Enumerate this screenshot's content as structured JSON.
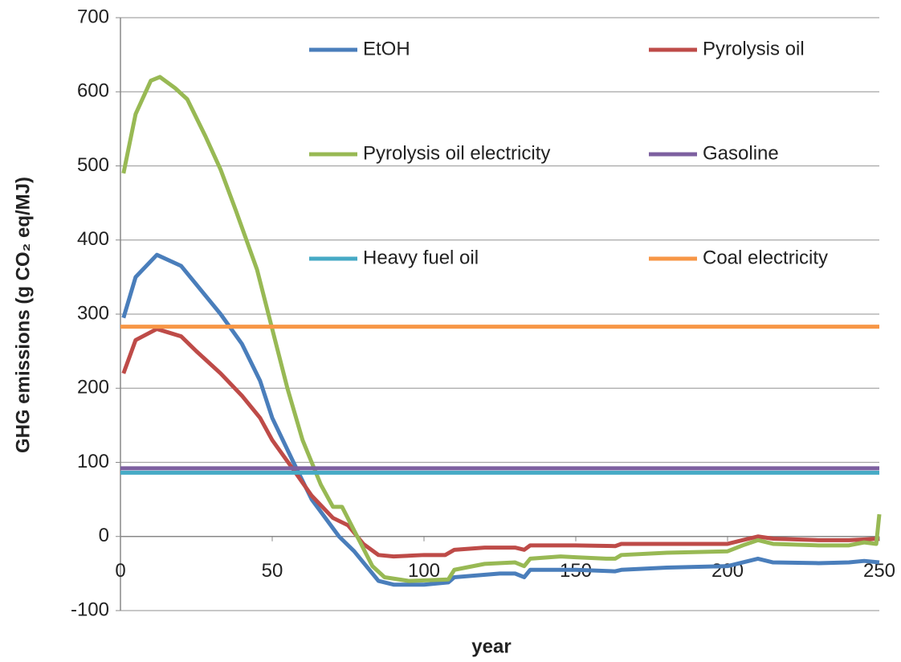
{
  "chart_data": {
    "type": "line",
    "xlabel": "year",
    "ylabel": "GHG emissions (g CO₂ eq/MJ)",
    "xlim": [
      0,
      250
    ],
    "xticks": [
      0,
      50,
      100,
      150,
      200,
      250
    ],
    "ylim": [
      -100,
      700
    ],
    "yticks": [
      -100,
      0,
      100,
      200,
      300,
      400,
      500,
      600,
      700
    ],
    "grid": true,
    "series": [
      {
        "name": "EtOH",
        "color": "#4a7ebb",
        "x": [
          1,
          5,
          12,
          20,
          25,
          33,
          40,
          46,
          50,
          57,
          63,
          72,
          77,
          85,
          90,
          100,
          108,
          110,
          125,
          130,
          133,
          135,
          150,
          163,
          165,
          180,
          200,
          205,
          210,
          215,
          230,
          240,
          245,
          250
        ],
        "values": [
          295,
          350,
          380,
          365,
          340,
          300,
          260,
          210,
          160,
          100,
          50,
          0,
          -20,
          -60,
          -65,
          -65,
          -62,
          -55,
          -50,
          -50,
          -55,
          -45,
          -45,
          -47,
          -45,
          -42,
          -40,
          -35,
          -30,
          -35,
          -36,
          -35,
          -33,
          -35
        ]
      },
      {
        "name": "Pyrolysis oil",
        "color": "#be4b48",
        "x": [
          1,
          5,
          12,
          20,
          25,
          33,
          40,
          46,
          50,
          57,
          63,
          70,
          75,
          80,
          85,
          90,
          100,
          107,
          110,
          120,
          130,
          133,
          135,
          150,
          163,
          165,
          180,
          200,
          205,
          210,
          215,
          230,
          240,
          250
        ],
        "values": [
          220,
          265,
          280,
          270,
          250,
          220,
          190,
          160,
          130,
          90,
          55,
          25,
          15,
          -10,
          -25,
          -27,
          -25,
          -25,
          -18,
          -15,
          -15,
          -18,
          -12,
          -12,
          -13,
          -10,
          -10,
          -10,
          -5,
          0,
          -3,
          -5,
          -5,
          -3
        ]
      },
      {
        "name": "Pyrolysis oil electricity",
        "color": "#98b954",
        "x": [
          1,
          5,
          10,
          13,
          18,
          22,
          28,
          33,
          38,
          45,
          50,
          55,
          60,
          66,
          70,
          73,
          78,
          83,
          87,
          95,
          108,
          110,
          120,
          130,
          133,
          135,
          145,
          150,
          160,
          163,
          165,
          180,
          200,
          205,
          210,
          215,
          230,
          240,
          245,
          249,
          250
        ],
        "values": [
          490,
          570,
          615,
          620,
          605,
          590,
          540,
          495,
          440,
          360,
          280,
          200,
          130,
          70,
          40,
          40,
          0,
          -40,
          -55,
          -60,
          -58,
          -45,
          -37,
          -35,
          -40,
          -30,
          -27,
          -28,
          -30,
          -30,
          -25,
          -22,
          -20,
          -12,
          -5,
          -10,
          -12,
          -12,
          -8,
          -10,
          30
        ]
      },
      {
        "name": "Gasoline",
        "color": "#7d60a0",
        "x": [
          0,
          250
        ],
        "values": [
          92,
          92
        ]
      },
      {
        "name": "Heavy fuel oil",
        "color": "#46aac5",
        "x": [
          0,
          250
        ],
        "values": [
          86,
          86
        ]
      },
      {
        "name": "Coal electricity",
        "color": "#f79646",
        "x": [
          0,
          250
        ],
        "values": [
          283,
          283
        ]
      }
    ]
  }
}
